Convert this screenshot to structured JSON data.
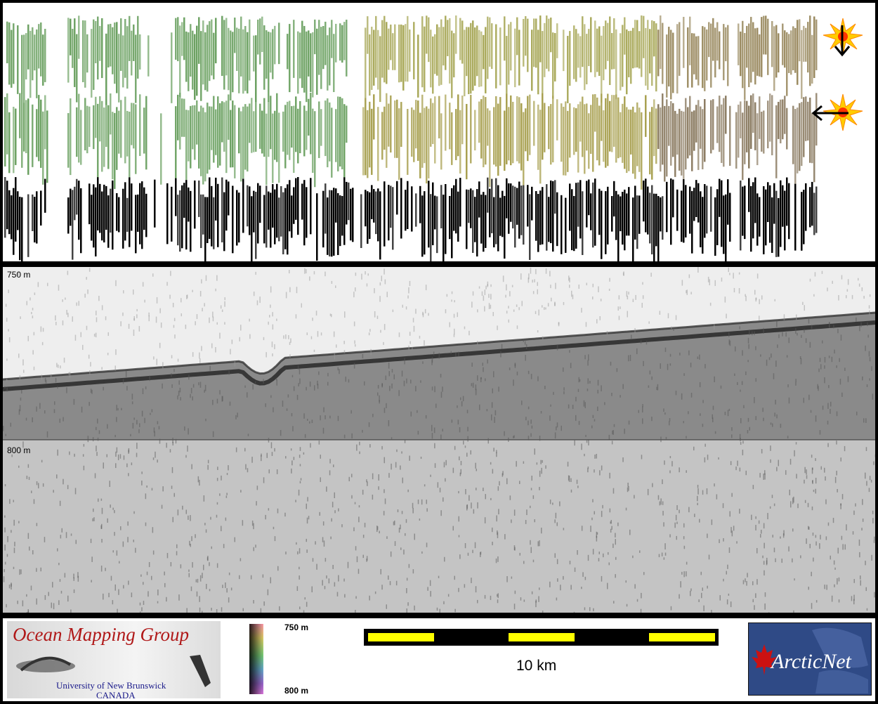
{
  "profile": {
    "depth_top_label": "750 m",
    "depth_mid_label": "800 m"
  },
  "colorbar": {
    "top_label": "750 m",
    "bottom_label": "800 m"
  },
  "scale": {
    "label": "10 km",
    "colors": [
      "#ffff00",
      "#000000"
    ]
  },
  "omg_logo": {
    "title": "Ocean Mapping Group",
    "line1": "University of New Brunswick",
    "line2": "CANADA",
    "title_color": "#b01818"
  },
  "arcticnet_logo": {
    "text": "ArcticNet",
    "bg_color": "#2f4a86"
  },
  "icons": [
    "sun-illumination-icon",
    "arrow-down-icon",
    "arrow-left-icon",
    "maple-leaf-icon"
  ]
}
